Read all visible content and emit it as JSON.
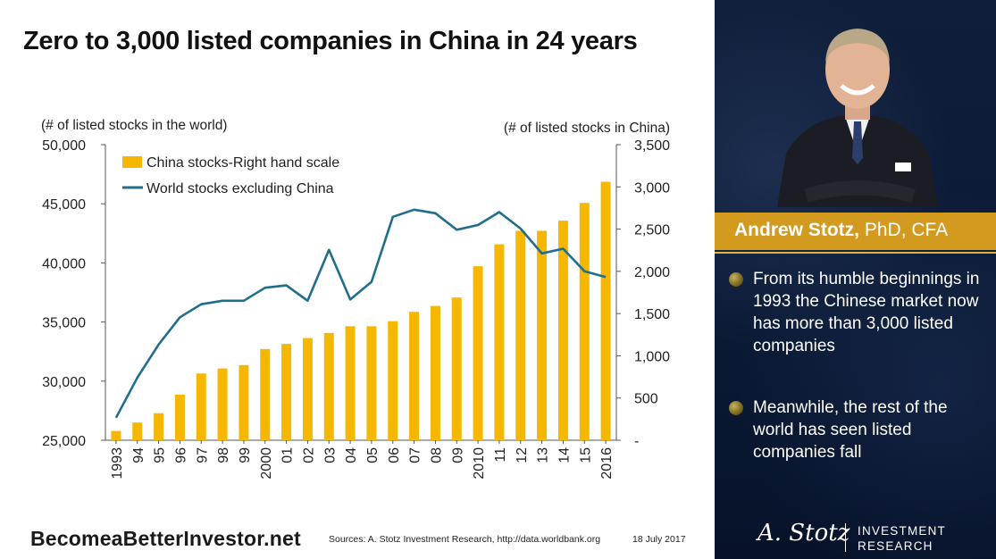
{
  "title": "Zero to 3,000 listed companies in China in 24 years",
  "chart_data": {
    "type": "bar+line",
    "left_axis_label": "(# of listed stocks in the world)",
    "right_axis_label": "(# of listed stocks in China)",
    "left_ylim": [
      25000,
      50000
    ],
    "left_ticks": [
      "25,000",
      "30,000",
      "35,000",
      "40,000",
      "45,000",
      "50,000"
    ],
    "right_ylim": [
      0,
      3500
    ],
    "right_ticks": [
      "-",
      "500",
      "1,000",
      "1,500",
      "2,000",
      "2,500",
      "3,000",
      "3,500"
    ],
    "categories": [
      "1993",
      "94",
      "95",
      "96",
      "97",
      "98",
      "99",
      "2000",
      "01",
      "02",
      "03",
      "04",
      "05",
      "06",
      "07",
      "08",
      "09",
      "2010",
      "11",
      "12",
      "13",
      "14",
      "15",
      "2016"
    ],
    "series": [
      {
        "name": "China stocks-Right hand scale",
        "type": "bar",
        "axis": "right",
        "color": "#f5b700",
        "values": [
          110,
          210,
          320,
          540,
          790,
          850,
          890,
          1080,
          1140,
          1210,
          1270,
          1350,
          1350,
          1410,
          1520,
          1590,
          1690,
          2060,
          2320,
          2480,
          2480,
          2600,
          2810,
          3060
        ]
      },
      {
        "name": "World stocks excluding China",
        "type": "line",
        "axis": "left",
        "color": "#1f6e8c",
        "values": [
          26900,
          30300,
          33100,
          35400,
          36500,
          36800,
          36800,
          37900,
          38100,
          36800,
          41100,
          36900,
          38400,
          43900,
          44500,
          44200,
          42800,
          43200,
          44300,
          42900,
          40800,
          41200,
          39300,
          38800
        ]
      }
    ],
    "legend_position": "top-left"
  },
  "footer": {
    "brand": "BecomeaBetterInvestor.net",
    "sources": "Sources: A. Stotz Investment Research, http://data.worldbank.org",
    "date": "18 July 2017"
  },
  "sidebar": {
    "name": "Andrew Stotz,",
    "credentials": "PhD, CFA",
    "bullets": [
      "From its humble beginnings in 1993 the Chinese market now has more than 3,000 listed companies",
      "Meanwhile, the rest of the world has seen listed companies fall"
    ],
    "logo_signature": "A. Stotz",
    "logo_line1": "INVESTMENT",
    "logo_line2": "RESEARCH",
    "accent": "#d29a1e",
    "background": "#0f1e3a"
  }
}
